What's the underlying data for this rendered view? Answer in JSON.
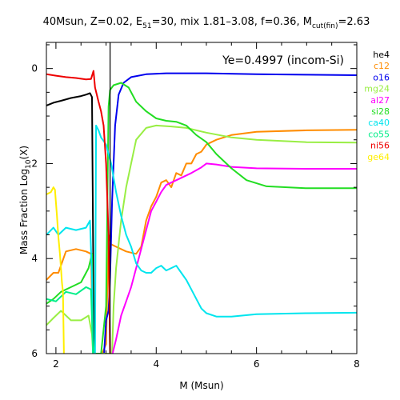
{
  "chart_data": {
    "type": "line",
    "title_parts": {
      "p1": "40Msun, Z=0.02, E",
      "p2": "51",
      "p3": "=30, mix 1.81–3.08, f=0.36, M",
      "p4": "cut(fin)",
      "p5": "=2.63"
    },
    "xlabel": "M (Msun)",
    "ylabel_parts": {
      "p1": "Mass Fraction Log",
      "p2": "10",
      "p3": "(X)"
    },
    "annotation": "Ye=0.4997 (incom-Si)",
    "xlim": [
      1.81,
      8.0
    ],
    "ylim": [
      -6.0,
      0.55
    ],
    "x_ticks": [
      2,
      4,
      6,
      8
    ],
    "x_tick_labels": [
      "2",
      "4",
      "6",
      "8"
    ],
    "y_ticks": [
      0,
      -2,
      -4,
      -6
    ],
    "y_tick_labels": [
      "0",
      "2",
      "4",
      "6"
    ],
    "vertical_line_x": 3.08,
    "series": [
      {
        "name": "he4",
        "color": "#000000",
        "points": [
          [
            1.81,
            -0.78
          ],
          [
            1.95,
            -0.72
          ],
          [
            2.1,
            -0.68
          ],
          [
            2.3,
            -0.62
          ],
          [
            2.5,
            -0.58
          ],
          [
            2.6,
            -0.55
          ],
          [
            2.68,
            -0.52
          ],
          [
            2.72,
            -0.6
          ],
          [
            2.74,
            -3.5
          ],
          [
            2.76,
            -6.0
          ]
        ]
      },
      {
        "name": "c12",
        "color": "#ff8c00",
        "points": [
          [
            1.81,
            -4.45
          ],
          [
            1.95,
            -4.3
          ],
          [
            2.05,
            -4.3
          ],
          [
            2.2,
            -3.85
          ],
          [
            2.4,
            -3.8
          ],
          [
            2.6,
            -3.85
          ],
          [
            2.7,
            -3.9
          ],
          [
            2.74,
            -6.0
          ],
          [
            2.92,
            -6.0
          ],
          [
            3.0,
            -5.8
          ],
          [
            3.05,
            -3.5
          ],
          [
            3.1,
            -3.7
          ],
          [
            3.2,
            -3.75
          ],
          [
            3.4,
            -3.85
          ],
          [
            3.6,
            -3.9
          ],
          [
            3.7,
            -3.75
          ],
          [
            3.8,
            -3.2
          ],
          [
            3.9,
            -2.9
          ],
          [
            4.0,
            -2.7
          ],
          [
            4.1,
            -2.4
          ],
          [
            4.2,
            -2.35
          ],
          [
            4.3,
            -2.5
          ],
          [
            4.4,
            -2.2
          ],
          [
            4.5,
            -2.25
          ],
          [
            4.6,
            -2.0
          ],
          [
            4.7,
            -2.0
          ],
          [
            4.8,
            -1.8
          ],
          [
            4.9,
            -1.75
          ],
          [
            5.0,
            -1.6
          ],
          [
            5.2,
            -1.5
          ],
          [
            5.5,
            -1.4
          ],
          [
            6.0,
            -1.33
          ],
          [
            7.0,
            -1.3
          ],
          [
            8.0,
            -1.29
          ]
        ]
      },
      {
        "name": "o16",
        "color": "#0000ee",
        "points": [
          [
            2.96,
            -6.0
          ],
          [
            3.0,
            -5.3
          ],
          [
            3.05,
            -5.1
          ],
          [
            3.08,
            -4.4
          ],
          [
            3.12,
            -2.8
          ],
          [
            3.18,
            -1.2
          ],
          [
            3.25,
            -0.55
          ],
          [
            3.35,
            -0.3
          ],
          [
            3.5,
            -0.18
          ],
          [
            3.8,
            -0.12
          ],
          [
            4.2,
            -0.1
          ],
          [
            5.0,
            -0.1
          ],
          [
            6.0,
            -0.12
          ],
          [
            7.0,
            -0.13
          ],
          [
            8.0,
            -0.14
          ]
        ]
      },
      {
        "name": "mg24",
        "color": "#99ee44",
        "points": [
          [
            1.81,
            -5.4
          ],
          [
            1.95,
            -5.25
          ],
          [
            2.1,
            -5.1
          ],
          [
            2.3,
            -5.3
          ],
          [
            2.5,
            -5.3
          ],
          [
            2.65,
            -5.2
          ],
          [
            2.72,
            -5.6
          ],
          [
            2.74,
            -6.0
          ],
          [
            3.12,
            -6.0
          ],
          [
            3.15,
            -5.0
          ],
          [
            3.2,
            -4.2
          ],
          [
            3.3,
            -3.2
          ],
          [
            3.4,
            -2.5
          ],
          [
            3.5,
            -2.0
          ],
          [
            3.6,
            -1.5
          ],
          [
            3.8,
            -1.25
          ],
          [
            4.0,
            -1.2
          ],
          [
            4.3,
            -1.22
          ],
          [
            4.6,
            -1.25
          ],
          [
            5.0,
            -1.35
          ],
          [
            5.5,
            -1.45
          ],
          [
            6.0,
            -1.5
          ],
          [
            7.0,
            -1.55
          ],
          [
            8.0,
            -1.56
          ]
        ]
      },
      {
        "name": "al27",
        "color": "#ff00ff",
        "points": [
          [
            3.13,
            -6.0
          ],
          [
            3.2,
            -5.7
          ],
          [
            3.3,
            -5.2
          ],
          [
            3.4,
            -4.9
          ],
          [
            3.5,
            -4.6
          ],
          [
            3.6,
            -4.2
          ],
          [
            3.7,
            -3.8
          ],
          [
            3.8,
            -3.4
          ],
          [
            3.9,
            -3.0
          ],
          [
            4.0,
            -2.8
          ],
          [
            4.1,
            -2.6
          ],
          [
            4.2,
            -2.45
          ],
          [
            4.3,
            -2.4
          ],
          [
            4.5,
            -2.3
          ],
          [
            4.7,
            -2.2
          ],
          [
            4.9,
            -2.08
          ],
          [
            5.0,
            -2.0
          ],
          [
            5.2,
            -2.02
          ],
          [
            5.5,
            -2.07
          ],
          [
            6.0,
            -2.1
          ],
          [
            7.0,
            -2.11
          ],
          [
            8.0,
            -2.11
          ]
        ]
      },
      {
        "name": "si28",
        "color": "#22dd22",
        "points": [
          [
            1.81,
            -4.95
          ],
          [
            1.95,
            -4.85
          ],
          [
            2.1,
            -4.7
          ],
          [
            2.3,
            -4.6
          ],
          [
            2.5,
            -4.5
          ],
          [
            2.65,
            -4.2
          ],
          [
            2.72,
            -3.9
          ],
          [
            2.74,
            -5.7
          ],
          [
            2.76,
            -6.0
          ],
          [
            2.9,
            -6.0
          ],
          [
            3.0,
            -5.0
          ],
          [
            3.05,
            -0.8
          ],
          [
            3.08,
            -0.45
          ],
          [
            3.15,
            -0.35
          ],
          [
            3.3,
            -0.3
          ],
          [
            3.45,
            -0.4
          ],
          [
            3.6,
            -0.7
          ],
          [
            3.8,
            -0.9
          ],
          [
            4.0,
            -1.05
          ],
          [
            4.2,
            -1.1
          ],
          [
            4.4,
            -1.12
          ],
          [
            4.6,
            -1.2
          ],
          [
            4.8,
            -1.4
          ],
          [
            5.0,
            -1.55
          ],
          [
            5.2,
            -1.8
          ],
          [
            5.5,
            -2.1
          ],
          [
            5.8,
            -2.35
          ],
          [
            6.2,
            -2.48
          ],
          [
            7.0,
            -2.52
          ],
          [
            8.0,
            -2.52
          ]
        ]
      },
      {
        "name": "ca40",
        "color": "#00e5ee",
        "points": [
          [
            1.81,
            -3.5
          ],
          [
            1.95,
            -3.35
          ],
          [
            2.05,
            -3.5
          ],
          [
            2.2,
            -3.35
          ],
          [
            2.4,
            -3.4
          ],
          [
            2.6,
            -3.35
          ],
          [
            2.68,
            -3.2
          ],
          [
            2.72,
            -4.4
          ],
          [
            2.74,
            -6.0
          ],
          [
            2.78,
            -6.0
          ],
          [
            2.8,
            -1.2
          ],
          [
            2.85,
            -1.3
          ],
          [
            2.9,
            -1.45
          ],
          [
            3.0,
            -1.6
          ],
          [
            3.1,
            -2.0
          ],
          [
            3.2,
            -2.6
          ],
          [
            3.3,
            -3.1
          ],
          [
            3.4,
            -3.5
          ],
          [
            3.5,
            -3.75
          ],
          [
            3.6,
            -4.1
          ],
          [
            3.7,
            -4.25
          ],
          [
            3.8,
            -4.3
          ],
          [
            3.9,
            -4.3
          ],
          [
            4.0,
            -4.2
          ],
          [
            4.1,
            -4.15
          ],
          [
            4.2,
            -4.25
          ],
          [
            4.3,
            -4.2
          ],
          [
            4.4,
            -4.15
          ],
          [
            4.5,
            -4.3
          ],
          [
            4.6,
            -4.45
          ],
          [
            4.7,
            -4.65
          ],
          [
            4.8,
            -4.85
          ],
          [
            4.9,
            -5.05
          ],
          [
            5.0,
            -5.15
          ],
          [
            5.2,
            -5.22
          ],
          [
            5.5,
            -5.22
          ],
          [
            6.0,
            -5.17
          ],
          [
            7.0,
            -5.15
          ],
          [
            8.0,
            -5.14
          ]
        ]
      },
      {
        "name": "co55",
        "color": "#00ee88",
        "points": [
          [
            1.81,
            -4.85
          ],
          [
            2.0,
            -4.9
          ],
          [
            2.2,
            -4.7
          ],
          [
            2.4,
            -4.75
          ],
          [
            2.6,
            -4.6
          ],
          [
            2.7,
            -4.65
          ],
          [
            2.74,
            -6.0
          ]
        ]
      },
      {
        "name": "ni56",
        "color": "#ee0000",
        "points": [
          [
            1.81,
            -0.12
          ],
          [
            2.0,
            -0.15
          ],
          [
            2.2,
            -0.18
          ],
          [
            2.4,
            -0.2
          ],
          [
            2.6,
            -0.23
          ],
          [
            2.7,
            -0.22
          ],
          [
            2.75,
            -0.05
          ],
          [
            2.78,
            -0.4
          ],
          [
            2.85,
            -0.7
          ],
          [
            2.9,
            -0.9
          ],
          [
            2.95,
            -1.2
          ],
          [
            3.0,
            -2.0
          ],
          [
            3.05,
            -3.5
          ],
          [
            3.08,
            -6.0
          ]
        ]
      },
      {
        "name": "ge64",
        "color": "#ffee00",
        "points": [
          [
            1.81,
            -2.65
          ],
          [
            1.9,
            -2.6
          ],
          [
            1.95,
            -2.5
          ],
          [
            1.98,
            -2.55
          ],
          [
            2.02,
            -3.1
          ],
          [
            2.05,
            -3.55
          ],
          [
            2.08,
            -3.9
          ],
          [
            2.1,
            -4.2
          ],
          [
            2.12,
            -4.5
          ],
          [
            2.14,
            -4.7
          ],
          [
            2.16,
            -6.0
          ]
        ]
      }
    ]
  }
}
